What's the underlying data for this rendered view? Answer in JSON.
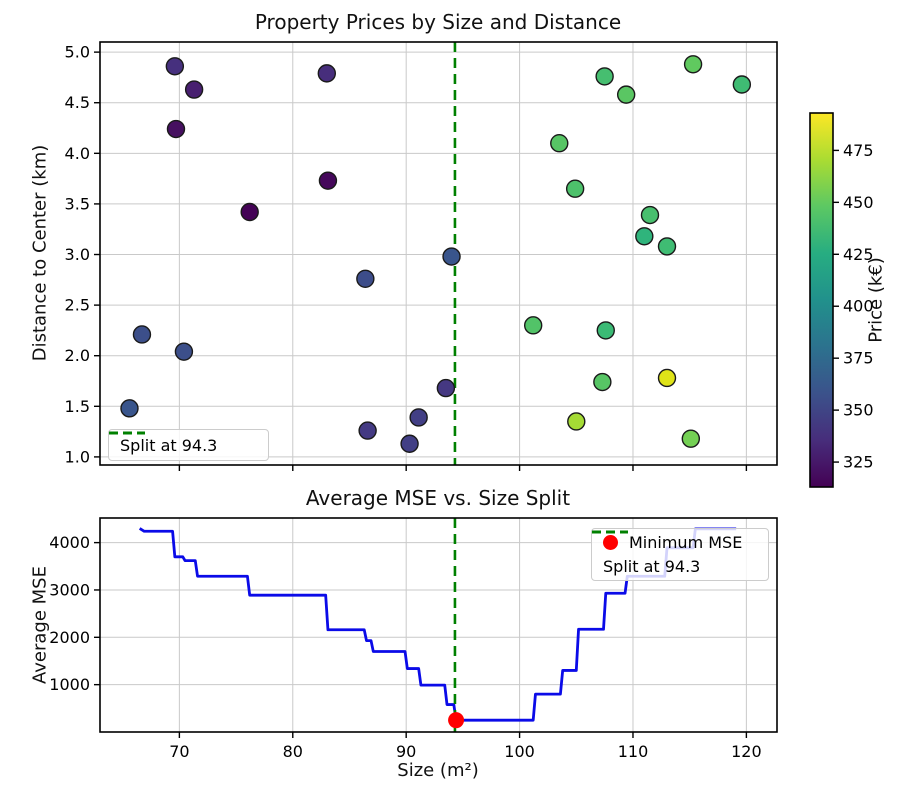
{
  "figure": {
    "background": "#ffffff"
  },
  "chart_data": [
    {
      "type": "scatter",
      "title": "Property Prices by Size and Distance",
      "xlabel": "",
      "ylabel": "Distance to Center (km)",
      "xlim": [
        63.0,
        122.7
      ],
      "ylim": [
        0.92,
        5.1
      ],
      "xticks": [
        70,
        80,
        90,
        100,
        110,
        120
      ],
      "xtick_labels_visible": false,
      "yticks": [
        1.0,
        1.5,
        2.0,
        2.5,
        3.0,
        3.5,
        4.0,
        4.5,
        5.0
      ],
      "grid": true,
      "colormap": "viridis",
      "colorbar": {
        "label": "Price (k€)",
        "ticks": [
          325,
          350,
          375,
          400,
          425,
          450,
          475
        ],
        "vmin": 313,
        "vmax": 493,
        "gradient": [
          [
            "0",
            "#440154"
          ],
          [
            "0.125",
            "#472d7b"
          ],
          [
            "0.25",
            "#3b528b"
          ],
          [
            "0.375",
            "#2c728e"
          ],
          [
            "0.5",
            "#21918c"
          ],
          [
            "0.625",
            "#27ad81"
          ],
          [
            "0.75",
            "#5cc863"
          ],
          [
            "0.875",
            "#aadc32"
          ],
          [
            "1",
            "#fde725"
          ]
        ]
      },
      "split_line": {
        "x": 94.3,
        "color": "#008000",
        "style": "dashed",
        "legend_label": "Split at 94.3"
      },
      "legend_position": "lower left",
      "points": [
        {
          "size": 65.6,
          "distance": 1.48,
          "price": 372,
          "color": "#39558c"
        },
        {
          "size": 66.7,
          "distance": 2.21,
          "price": 368,
          "color": "#3c4f8a"
        },
        {
          "size": 69.6,
          "distance": 4.86,
          "price": 342,
          "color": "#46307e"
        },
        {
          "size": 69.7,
          "distance": 4.24,
          "price": 322,
          "color": "#461060"
        },
        {
          "size": 70.4,
          "distance": 2.04,
          "price": 368,
          "color": "#3c4f8a"
        },
        {
          "size": 71.3,
          "distance": 4.63,
          "price": 330,
          "color": "#481f70"
        },
        {
          "size": 76.2,
          "distance": 3.42,
          "price": 315,
          "color": "#440256"
        },
        {
          "size": 83.0,
          "distance": 4.79,
          "price": 340,
          "color": "#472e7c"
        },
        {
          "size": 83.1,
          "distance": 3.73,
          "price": 318,
          "color": "#45085b"
        },
        {
          "size": 86.4,
          "distance": 2.76,
          "price": 365,
          "color": "#3d4d8a"
        },
        {
          "size": 86.6,
          "distance": 1.26,
          "price": 352,
          "color": "#443a83"
        },
        {
          "size": 90.3,
          "distance": 1.13,
          "price": 355,
          "color": "#423f85"
        },
        {
          "size": 91.1,
          "distance": 1.39,
          "price": 355,
          "color": "#423f85"
        },
        {
          "size": 93.5,
          "distance": 1.68,
          "price": 350,
          "color": "#453882"
        },
        {
          "size": 94.0,
          "distance": 2.98,
          "price": 372,
          "color": "#39558c"
        },
        {
          "size": 101.2,
          "distance": 2.3,
          "price": 460,
          "color": "#52c368"
        },
        {
          "size": 103.5,
          "distance": 4.1,
          "price": 462,
          "color": "#57c565"
        },
        {
          "size": 104.9,
          "distance": 3.65,
          "price": 458,
          "color": "#4dc16b"
        },
        {
          "size": 105.0,
          "distance": 1.35,
          "price": 480,
          "color": "#a5db35"
        },
        {
          "size": 107.3,
          "distance": 1.74,
          "price": 462,
          "color": "#57c565"
        },
        {
          "size": 107.5,
          "distance": 4.76,
          "price": 455,
          "color": "#46be70"
        },
        {
          "size": 107.6,
          "distance": 2.25,
          "price": 450,
          "color": "#3bba75"
        },
        {
          "size": 109.4,
          "distance": 4.58,
          "price": 463,
          "color": "#5ac663"
        },
        {
          "size": 111.0,
          "distance": 3.18,
          "price": 445,
          "color": "#2fb47c"
        },
        {
          "size": 111.5,
          "distance": 3.39,
          "price": 456,
          "color": "#48bf6e"
        },
        {
          "size": 113.0,
          "distance": 3.08,
          "price": 450,
          "color": "#3fbc73"
        },
        {
          "size": 113.0,
          "distance": 1.78,
          "price": 488,
          "color": "#dfe318"
        },
        {
          "size": 115.1,
          "distance": 1.18,
          "price": 472,
          "color": "#74d054"
        },
        {
          "size": 115.3,
          "distance": 4.88,
          "price": 465,
          "color": "#60c95f"
        },
        {
          "size": 119.6,
          "distance": 4.68,
          "price": 452,
          "color": "#3fbc73"
        }
      ]
    },
    {
      "type": "line",
      "title": "Average MSE vs. Size Split",
      "xlabel": "Size (m²)",
      "ylabel": "Average MSE",
      "xlim": [
        63.0,
        122.7
      ],
      "ylim": [
        0,
        4520
      ],
      "xticks": [
        70,
        80,
        90,
        100,
        110,
        120
      ],
      "yticks": [
        1000,
        2000,
        3000,
        4000
      ],
      "grid": true,
      "line_color": "#0b0be8",
      "x": [
        66.5,
        66.9,
        69.4,
        69.6,
        70.3,
        70.5,
        71.4,
        71.6,
        76.0,
        76.2,
        82.9,
        83.1,
        86.3,
        86.5,
        86.9,
        87.1,
        89.9,
        90.1,
        91.1,
        91.3,
        93.4,
        93.6,
        94.2,
        94.4,
        101.2,
        101.4,
        103.6,
        103.8,
        105.0,
        105.2,
        107.4,
        107.6,
        109.3,
        109.5,
        112.8,
        113.0,
        115.3,
        115.5,
        119.1
      ],
      "y": [
        4300,
        4240,
        4240,
        3700,
        3700,
        3620,
        3620,
        3290,
        3290,
        2890,
        2890,
        2160,
        2160,
        1930,
        1930,
        1700,
        1700,
        1340,
        1340,
        990,
        990,
        580,
        580,
        250,
        250,
        800,
        800,
        1300,
        1300,
        2170,
        2170,
        2930,
        2930,
        3290,
        3290,
        3890,
        3890,
        4290,
        4290
      ],
      "min_point": {
        "x": 94.4,
        "y": 250,
        "color": "#ff0000",
        "legend_label": "Minimum MSE"
      },
      "split_line": {
        "x": 94.3,
        "color": "#008000",
        "style": "dashed",
        "legend_label": "Split at 94.3"
      },
      "legend_position": "upper right"
    }
  ]
}
